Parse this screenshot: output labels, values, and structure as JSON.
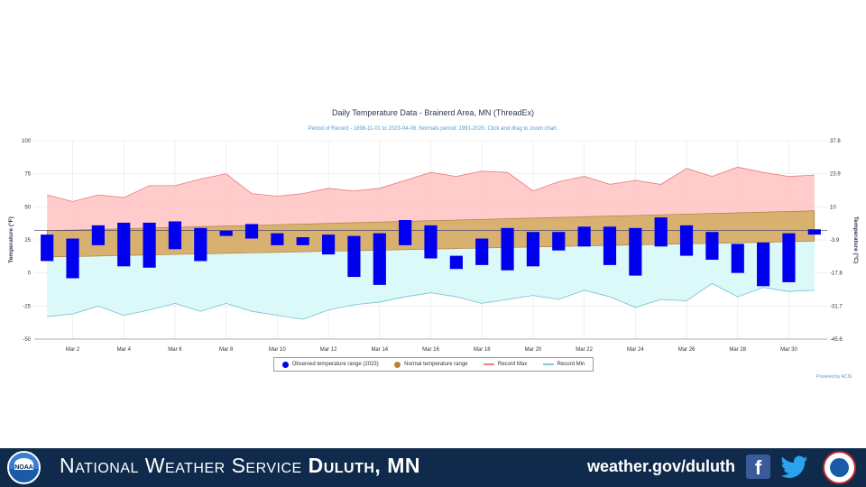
{
  "chart_data": {
    "type": "bar",
    "title": "Daily Temperature Data - Brainerd Area, MN (ThreadEx)",
    "subtitle": "Period of Record - 1898-11-01 to 2023-04-08. Normals period: 1991-2020. Click and drag to zoom chart.",
    "ylabel_left": "Temperature (°F)",
    "ylabel_right": "Temperature (°C)",
    "ylim": [
      -50,
      100
    ],
    "y_ticks_left": [
      "100",
      "75",
      "50",
      "25",
      "0",
      "-25",
      "-50"
    ],
    "y_ticks_right": [
      "37.8",
      "23.9",
      "10",
      "-3.9",
      "-17.8",
      "-31.7",
      "-45.6"
    ],
    "x_tick_labels": [
      "Mar 2",
      "Mar 4",
      "Mar 6",
      "Mar 8",
      "Mar 10",
      "Mar 12",
      "Mar 14",
      "Mar 16",
      "Mar 18",
      "Mar 20",
      "Mar 22",
      "Mar 24",
      "Mar 26",
      "Mar 28",
      "Mar 30"
    ],
    "days": [
      1,
      2,
      3,
      4,
      5,
      6,
      7,
      8,
      9,
      10,
      11,
      12,
      13,
      14,
      15,
      16,
      17,
      18,
      19,
      20,
      21,
      22,
      23,
      24,
      25,
      26,
      27,
      28,
      29,
      30,
      31
    ],
    "series": [
      {
        "name": "Observed temperature range (2023)",
        "color": "#0000ee",
        "high": [
          29,
          26,
          36,
          38,
          38,
          39,
          34,
          32,
          37,
          30,
          27,
          29,
          28,
          30,
          40,
          36,
          13,
          26,
          34,
          31,
          31,
          35,
          35,
          34,
          42,
          36,
          31,
          22,
          23,
          30,
          33
        ],
        "low": [
          9,
          -4,
          21,
          5,
          4,
          18,
          9,
          28,
          26,
          21,
          21,
          14,
          -3,
          -9,
          21,
          11,
          3,
          6,
          2,
          5,
          17,
          20,
          6,
          -2,
          20,
          13,
          10,
          0,
          -10,
          -7,
          29
        ]
      },
      {
        "name": "Normal temperature range",
        "color": "#c8a060",
        "high": [
          32,
          32.5,
          33,
          33.5,
          34,
          34.5,
          35,
          35.5,
          36,
          36.5,
          37,
          37.5,
          38,
          38.5,
          39,
          39.5,
          40,
          40.5,
          41,
          41.5,
          42,
          42.5,
          43,
          43.5,
          44,
          44.5,
          45,
          45.5,
          46,
          46.5,
          47
        ],
        "low": [
          12,
          12.4,
          12.8,
          13.2,
          13.6,
          14,
          14.4,
          14.8,
          15.2,
          15.6,
          16,
          16.4,
          16.8,
          17.2,
          17.6,
          18,
          18.4,
          18.8,
          19.2,
          19.6,
          20,
          20.4,
          20.8,
          21.2,
          21.6,
          22,
          22.4,
          22.8,
          23.2,
          23.6,
          24
        ]
      },
      {
        "name": "Record Max",
        "color": "#f08080",
        "values": [
          59,
          54,
          59,
          57,
          66,
          66,
          71,
          75,
          60,
          58,
          60,
          64,
          62,
          64,
          70,
          76,
          73,
          77,
          76,
          62,
          69,
          73,
          67,
          70,
          67,
          79,
          73,
          80,
          76,
          73,
          74
        ]
      },
      {
        "name": "Record Min",
        "color": "#80cccc",
        "values": [
          -33,
          -31,
          -25,
          -32,
          -28,
          -23,
          -29,
          -23,
          -29,
          -32,
          -35,
          -28,
          -24,
          -22,
          -18,
          -15,
          -18,
          -23,
          -20,
          -17,
          -20,
          -13,
          -18,
          -26,
          -20,
          -21,
          -8,
          -18,
          -11,
          -14,
          -13
        ]
      }
    ],
    "legend_position": "bottom-center",
    "grid": true,
    "credits": "Powered by ACIS"
  },
  "legend": {
    "observed": "Observed temperature range (2023)",
    "normal": "Normal temperature range",
    "record_max": "Record Max",
    "record_min": "Record Min"
  },
  "footer": {
    "org_prefix": "National Weather Service",
    "org_office": "Duluth, MN",
    "site": "weather.gov/duluth",
    "noaa_text": "NOAA",
    "background": "#0f2a4a"
  }
}
